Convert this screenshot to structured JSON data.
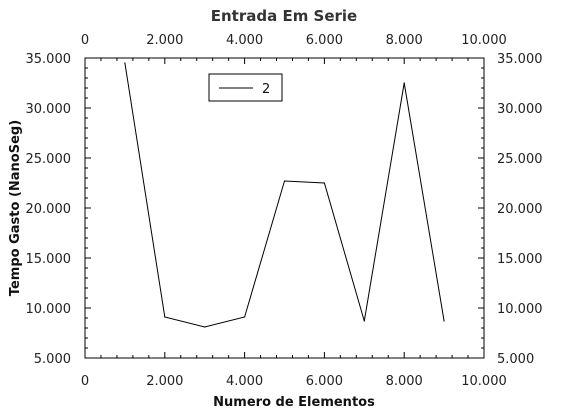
{
  "chart_data": {
    "type": "line",
    "title": "Entrada Em Serie",
    "xlabel": "Numero de Elementos",
    "ylabel": "Tempo Gasto (NanoSeg)",
    "xlim": [
      0,
      10000
    ],
    "ylim": [
      5000,
      35000
    ],
    "x_ticks": [
      0,
      2000,
      4000,
      6000,
      8000,
      10000
    ],
    "x_tick_labels": [
      "0",
      "2.000",
      "4.000",
      "6.000",
      "8.000",
      "10.000"
    ],
    "y_ticks": [
      5000,
      10000,
      15000,
      20000,
      25000,
      30000,
      35000
    ],
    "y_tick_labels": [
      "5.000",
      "10.000",
      "15.000",
      "20.000",
      "25.000",
      "30.000",
      "35.000"
    ],
    "legend_position": "top-left",
    "grid": false,
    "series": [
      {
        "name": "2",
        "color": "#000000",
        "x": [
          1000,
          2000,
          3000,
          4000,
          5000,
          6000,
          7000,
          8000,
          9000
        ],
        "y": [
          34500,
          9100,
          8100,
          9100,
          22700,
          22500,
          8700,
          32500,
          8700
        ]
      }
    ]
  }
}
